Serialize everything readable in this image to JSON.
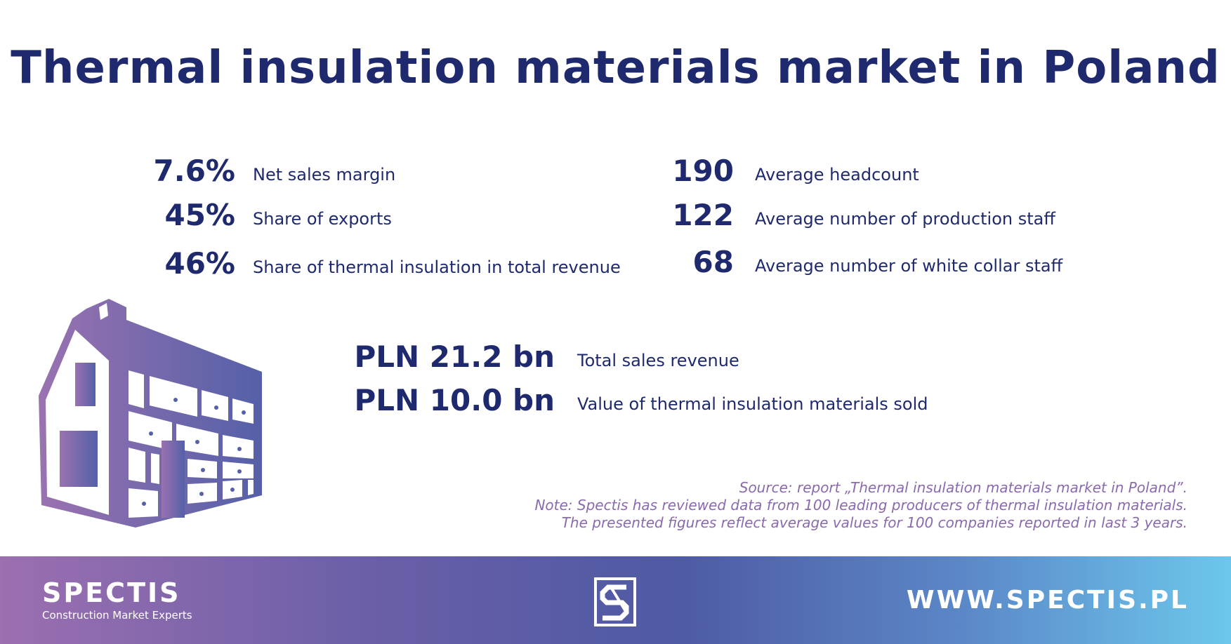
{
  "title": "Thermal insulation materials market in Poland",
  "stats_left": [
    {
      "value": "7.6%",
      "label": "Net sales margin"
    },
    {
      "value": "45%",
      "label": "Share of exports"
    },
    {
      "value": "46%",
      "label": "Share of thermal insulation in total revenue"
    }
  ],
  "stats_right": [
    {
      "value": "190",
      "label": "Average headcount"
    },
    {
      "value": "122",
      "label": "Average number of production staff"
    },
    {
      "value": "68",
      "label": "Average number of white collar staff"
    }
  ],
  "stats_center": [
    {
      "value": "PLN 21.2 bn",
      "label": "Total sales revenue"
    },
    {
      "value": "PLN 10.0 bn",
      "label": "Value of thermal insulation materials sold"
    }
  ],
  "source": {
    "line1": "Source: report „Thermal insulation materials market in Poland”.",
    "line2": "Note: Spectis has reviewed data from 100 leading producers of thermal insulation materials.",
    "line3": "The presented figures reflect average values for 100 companies reported in last 3 years."
  },
  "footer": {
    "brand_name": "SPECTIS",
    "brand_tagline": "Construction Market Experts",
    "website": "WWW.SPECTIS.PL",
    "logo_icon": "spectis-s-logo-icon",
    "gradient_colors": [
      "#9b6fb0",
      "#4e5aa3",
      "#6cc7ec"
    ]
  },
  "illustration_icon": "insulated-house-icon",
  "colors": {
    "navy": "#1f2a6e",
    "purple": "#8a6aae"
  }
}
